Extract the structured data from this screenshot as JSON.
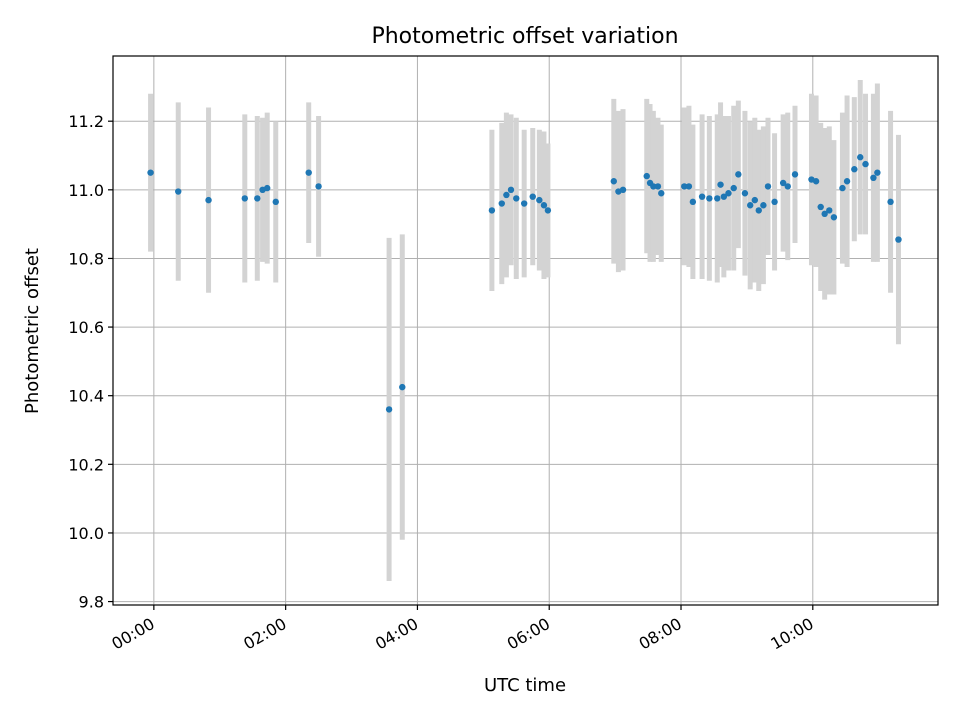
{
  "chart_data": {
    "type": "scatter",
    "title": "Photometric offset variation",
    "xlabel": "UTC time",
    "ylabel": "Photometric offset",
    "xlim": [
      -0.62,
      11.9
    ],
    "ylim": [
      9.79,
      11.39
    ],
    "grid": true,
    "colors": {
      "point": "#1f77b4",
      "errorbar": "#d3d3d3"
    },
    "x_ticks": [
      {
        "value": 0,
        "label": "00:00"
      },
      {
        "value": 2,
        "label": "02:00"
      },
      {
        "value": 4,
        "label": "04:00"
      },
      {
        "value": 6,
        "label": "06:00"
      },
      {
        "value": 8,
        "label": "08:00"
      },
      {
        "value": 10,
        "label": "10:00"
      }
    ],
    "y_ticks": [
      {
        "value": 9.8,
        "label": "9.8"
      },
      {
        "value": 10.0,
        "label": "10.0"
      },
      {
        "value": 10.2,
        "label": "10.2"
      },
      {
        "value": 10.4,
        "label": "10.4"
      },
      {
        "value": 10.6,
        "label": "10.6"
      },
      {
        "value": 10.8,
        "label": "10.8"
      },
      {
        "value": 11.0,
        "label": "11.0"
      },
      {
        "value": 11.2,
        "label": "11.2"
      }
    ],
    "series": [
      {
        "name": "offset",
        "x_unit": "hours UTC",
        "points": [
          [
            -0.05,
            11.05,
            0.23
          ],
          [
            0.37,
            10.995,
            0.26
          ],
          [
            0.83,
            10.97,
            0.27
          ],
          [
            1.38,
            10.975,
            0.245
          ],
          [
            1.57,
            10.975,
            0.24
          ],
          [
            1.65,
            11.0,
            0.21
          ],
          [
            1.72,
            11.005,
            0.22
          ],
          [
            1.85,
            10.965,
            0.235
          ],
          [
            2.35,
            11.05,
            0.205
          ],
          [
            2.5,
            11.01,
            0.205
          ],
          [
            3.57,
            10.36,
            0.5
          ],
          [
            3.77,
            10.425,
            0.445
          ],
          [
            5.13,
            10.94,
            0.235
          ],
          [
            5.28,
            10.96,
            0.235
          ],
          [
            5.35,
            10.985,
            0.24
          ],
          [
            5.42,
            11.0,
            0.22
          ],
          [
            5.5,
            10.975,
            0.235
          ],
          [
            5.62,
            10.96,
            0.215
          ],
          [
            5.75,
            10.98,
            0.2
          ],
          [
            5.85,
            10.97,
            0.205
          ],
          [
            5.92,
            10.955,
            0.215
          ],
          [
            5.98,
            10.94,
            0.195
          ],
          [
            6.98,
            11.025,
            0.24
          ],
          [
            7.05,
            10.995,
            0.235
          ],
          [
            7.12,
            11.0,
            0.235
          ],
          [
            7.48,
            11.04,
            0.225
          ],
          [
            7.53,
            11.02,
            0.23
          ],
          [
            7.58,
            11.01,
            0.22
          ],
          [
            7.65,
            11.01,
            0.2
          ],
          [
            7.7,
            10.99,
            0.2
          ],
          [
            8.05,
            11.01,
            0.23
          ],
          [
            8.12,
            11.01,
            0.235
          ],
          [
            8.18,
            10.965,
            0.225
          ],
          [
            8.32,
            10.98,
            0.24
          ],
          [
            8.43,
            10.975,
            0.24
          ],
          [
            8.55,
            10.975,
            0.245
          ],
          [
            8.6,
            11.015,
            0.24
          ],
          [
            8.65,
            10.98,
            0.235
          ],
          [
            8.72,
            10.99,
            0.225
          ],
          [
            8.8,
            11.005,
            0.24
          ],
          [
            8.87,
            11.045,
            0.215
          ],
          [
            8.97,
            10.99,
            0.24
          ],
          [
            9.05,
            10.955,
            0.245
          ],
          [
            9.12,
            10.97,
            0.24
          ],
          [
            9.18,
            10.94,
            0.235
          ],
          [
            9.25,
            10.955,
            0.23
          ],
          [
            9.32,
            11.01,
            0.2
          ],
          [
            9.42,
            10.965,
            0.2
          ],
          [
            9.55,
            11.02,
            0.2
          ],
          [
            9.62,
            11.01,
            0.215
          ],
          [
            9.73,
            11.045,
            0.2
          ],
          [
            9.98,
            11.03,
            0.25
          ],
          [
            10.05,
            11.025,
            0.25
          ],
          [
            10.12,
            10.95,
            0.245
          ],
          [
            10.18,
            10.93,
            0.25
          ],
          [
            10.25,
            10.94,
            0.245
          ],
          [
            10.32,
            10.92,
            0.225
          ],
          [
            10.45,
            11.005,
            0.22
          ],
          [
            10.52,
            11.025,
            0.25
          ],
          [
            10.63,
            11.06,
            0.21
          ],
          [
            10.72,
            11.095,
            0.225
          ],
          [
            10.8,
            11.075,
            0.205
          ],
          [
            10.92,
            11.035,
            0.245
          ],
          [
            10.98,
            11.05,
            0.26
          ],
          [
            11.18,
            10.965,
            0.265
          ],
          [
            11.3,
            10.855,
            0.305
          ]
        ]
      }
    ]
  }
}
